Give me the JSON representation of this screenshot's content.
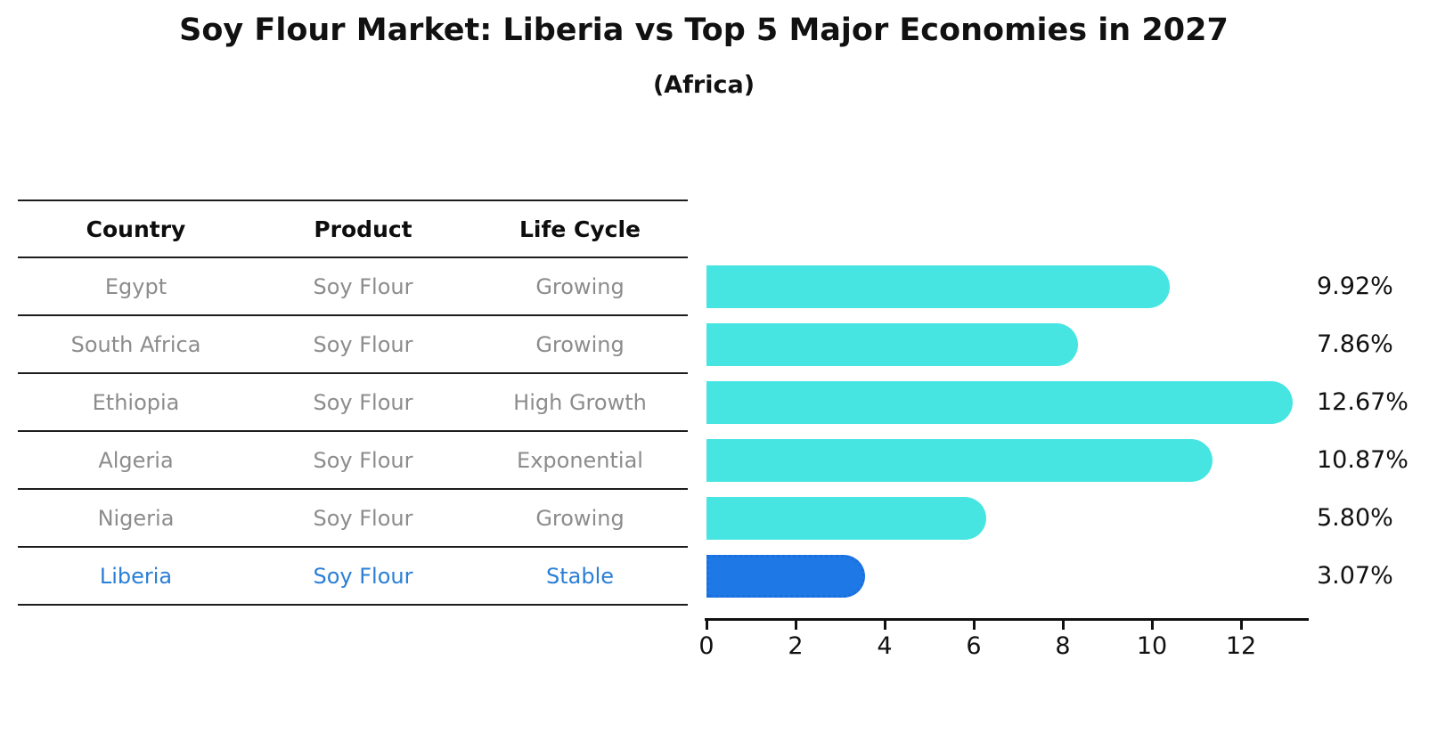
{
  "title": "Soy Flour Market: Liberia vs Top 5 Major Economies in 2027",
  "subtitle": "(Africa)",
  "table": {
    "headers": {
      "country": "Country",
      "product": "Product",
      "life_cycle": "Life Cycle"
    },
    "rows": [
      {
        "country": "Egypt",
        "product": "Soy Flour",
        "life_cycle": "Growing",
        "highlight": false
      },
      {
        "country": "South Africa",
        "product": "Soy Flour",
        "life_cycle": "Growing",
        "highlight": false
      },
      {
        "country": "Ethiopia",
        "product": "Soy Flour",
        "life_cycle": "High Growth",
        "highlight": false
      },
      {
        "country": "Algeria",
        "product": "Soy Flour",
        "life_cycle": "Exponential",
        "highlight": false
      },
      {
        "country": "Nigeria",
        "product": "Soy Flour",
        "life_cycle": "Growing",
        "highlight": false
      },
      {
        "country": "Liberia",
        "product": "Soy Flour",
        "life_cycle": "Stable",
        "highlight": true
      }
    ]
  },
  "chart_data": {
    "type": "bar",
    "orientation": "horizontal",
    "title": "Soy Flour Market: Liberia vs Top 5 Major Economies in 2027 (Africa)",
    "categories": [
      "Egypt",
      "South Africa",
      "Ethiopia",
      "Algeria",
      "Nigeria",
      "Liberia"
    ],
    "values": [
      9.92,
      7.86,
      12.67,
      10.87,
      5.8,
      3.07
    ],
    "value_labels": [
      "9.92%",
      "7.86%",
      "12.67%",
      "10.87%",
      "5.80%",
      "3.07%"
    ],
    "unit": "%",
    "xlim": [
      0,
      13.5
    ],
    "x_ticks": [
      0,
      2,
      4,
      6,
      8,
      10,
      12
    ],
    "grid": false,
    "legend": "none",
    "bar_color": "#46e5e2",
    "highlight_bar_color": "#1e78e5",
    "highlight_index": 5,
    "highlight_text_color": "#2a7fd6"
  }
}
